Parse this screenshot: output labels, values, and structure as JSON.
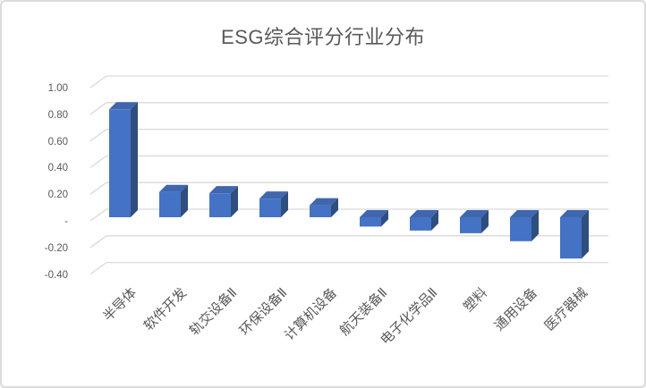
{
  "window": {
    "background": "#ffffff",
    "border_color": "#dcdcdc"
  },
  "chart_data": {
    "type": "bar",
    "style": "3d-column",
    "title": "ESG综合评分行业分布",
    "xlabel": "",
    "ylabel": "",
    "categories": [
      "半导体",
      "软件开发",
      "轨交设备Ⅱ",
      "环保设备Ⅱ",
      "计算机设备",
      "航天装备Ⅱ",
      "电子化学品Ⅱ",
      "塑料",
      "通用设备",
      "医疗器械"
    ],
    "values": [
      0.81,
      0.19,
      0.18,
      0.14,
      0.09,
      -0.07,
      -0.1,
      -0.12,
      -0.18,
      -0.31
    ],
    "ylim": [
      -0.4,
      1.0
    ],
    "y_axis": {
      "tick_labels": [
        "1.00",
        "0.80",
        "0.60",
        "0.40",
        "0.20",
        "-",
        "-0.20",
        "-0.40"
      ],
      "tick_values": [
        1.0,
        0.8,
        0.6,
        0.4,
        0.2,
        0.0,
        -0.2,
        -0.4
      ]
    },
    "grid": true,
    "legend": false,
    "colors": {
      "bar_front": "#4472c4",
      "bar_top": "#4067ae",
      "bar_side": "#2e4e7e",
      "gridline": "#d9d9d9",
      "text": "#595959"
    }
  }
}
